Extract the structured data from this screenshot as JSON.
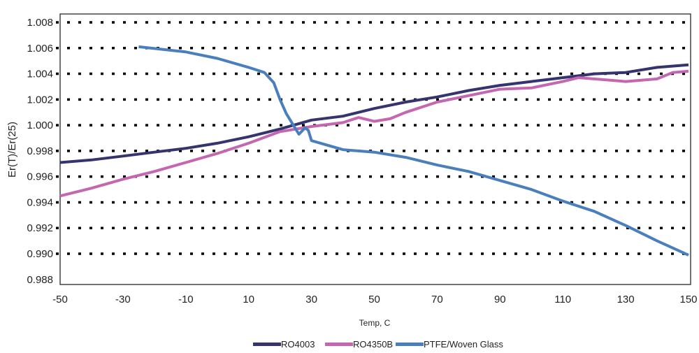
{
  "chart_data": {
    "type": "line",
    "title": "",
    "xlabel": "Temp, C",
    "ylabel": "Er(T)/Er(25)",
    "xlim": [
      -50,
      150
    ],
    "ylim": [
      0.988,
      1.008
    ],
    "xticks": [
      "-50",
      "-30",
      "-10",
      "10",
      "30",
      "50",
      "70",
      "90",
      "110",
      "130",
      "150"
    ],
    "yticks": [
      "1.008",
      "1.006",
      "1.004",
      "1.002",
      "1.000",
      "0.998",
      "0.996",
      "0.994",
      "0.992",
      "0.990",
      "0.988"
    ],
    "grid": "horizontal dotted",
    "legend_position": "bottom",
    "series": [
      {
        "name": "RO4003",
        "color": "#35346e",
        "x": [
          -50,
          -40,
          -30,
          -20,
          -10,
          0,
          10,
          20,
          30,
          40,
          50,
          60,
          70,
          80,
          90,
          100,
          110,
          120,
          130,
          140,
          150
        ],
        "y": [
          0.9971,
          0.9973,
          0.9976,
          0.9979,
          0.9982,
          0.9986,
          0.9991,
          0.9997,
          1.0004,
          1.0007,
          1.0013,
          1.0018,
          1.0022,
          1.0027,
          1.0031,
          1.0034,
          1.0037,
          1.004,
          1.0041,
          1.0045,
          1.0047
        ]
      },
      {
        "name": "RO4350B",
        "color": "#c466b0",
        "x": [
          -50,
          -40,
          -30,
          -20,
          -10,
          0,
          10,
          20,
          30,
          40,
          45,
          50,
          55,
          60,
          70,
          80,
          90,
          100,
          110,
          115,
          120,
          130,
          140,
          145,
          150
        ],
        "y": [
          0.9945,
          0.9951,
          0.9958,
          0.9964,
          0.9971,
          0.9978,
          0.9986,
          0.9995,
          0.9999,
          1.0002,
          1.0006,
          1.0003,
          1.0005,
          1.001,
          1.0018,
          1.0023,
          1.0028,
          1.0029,
          1.0034,
          1.0037,
          1.0036,
          1.0034,
          1.0036,
          1.0041,
          1.0042
        ]
      },
      {
        "name": "PTFE/Woven Glass",
        "color": "#4a7fbd",
        "x": [
          -25,
          -10,
          0,
          10,
          15,
          18,
          20,
          22,
          24,
          26,
          28,
          29,
          30,
          40,
          50,
          60,
          70,
          80,
          90,
          100,
          110,
          120,
          130,
          140,
          150
        ],
        "y": [
          1.0061,
          1.0057,
          1.0052,
          1.0045,
          1.0041,
          1.0033,
          1.002,
          1.0009,
          1.0001,
          0.9993,
          0.9998,
          0.9996,
          0.9988,
          0.9981,
          0.9979,
          0.9975,
          0.9969,
          0.9964,
          0.9957,
          0.995,
          0.9941,
          0.9933,
          0.9922,
          0.991,
          0.9899
        ]
      }
    ]
  }
}
